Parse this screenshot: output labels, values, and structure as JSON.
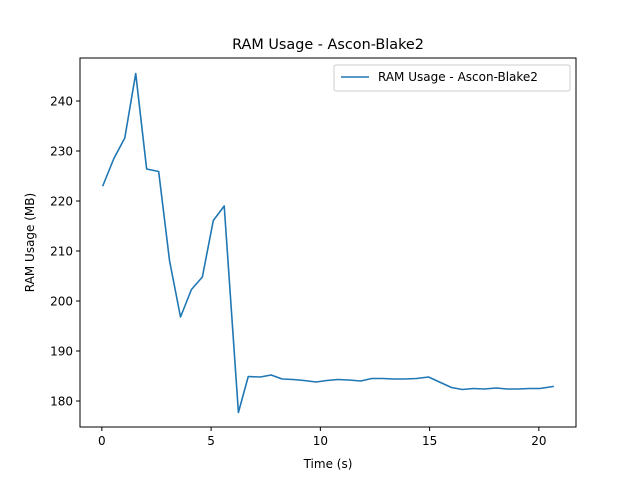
{
  "chart_data": {
    "type": "line",
    "title": "RAM Usage - Ascon-Blake2",
    "xlabel": "Time (s)",
    "ylabel": "RAM Usage (MB)",
    "xlim": [
      -1.0,
      21.7
    ],
    "ylim": [
      174.8,
      248.6
    ],
    "xticks": [
      0,
      5,
      10,
      15,
      20
    ],
    "yticks": [
      180,
      190,
      200,
      210,
      220,
      230,
      240
    ],
    "grid": false,
    "legend_position": "top-right",
    "series": [
      {
        "name": "RAM Usage - Ascon-Blake2",
        "color": "#1f77b4",
        "x": [
          0.05,
          0.55,
          1.05,
          1.55,
          2.05,
          2.6,
          3.1,
          3.6,
          4.1,
          4.6,
          5.1,
          5.6,
          6.25,
          6.7,
          7.25,
          7.75,
          8.25,
          8.75,
          9.25,
          9.8,
          10.3,
          10.8,
          11.3,
          11.85,
          12.35,
          12.85,
          13.35,
          13.85,
          14.4,
          14.95,
          15.45,
          16.0,
          16.5,
          17.0,
          17.5,
          18.05,
          18.55,
          19.05,
          19.55,
          20.05,
          20.65
        ],
        "y": [
          223.1,
          228.5,
          232.6,
          245.5,
          226.4,
          225.9,
          208.0,
          196.8,
          202.3,
          204.8,
          216.1,
          219.0,
          177.7,
          184.9,
          184.8,
          185.2,
          184.4,
          184.3,
          184.1,
          183.8,
          184.1,
          184.3,
          184.2,
          184.0,
          184.5,
          184.5,
          184.4,
          184.4,
          184.5,
          184.8,
          183.8,
          182.7,
          182.3,
          182.5,
          182.4,
          182.6,
          182.4,
          182.4,
          182.5,
          182.5,
          182.9
        ]
      }
    ]
  }
}
